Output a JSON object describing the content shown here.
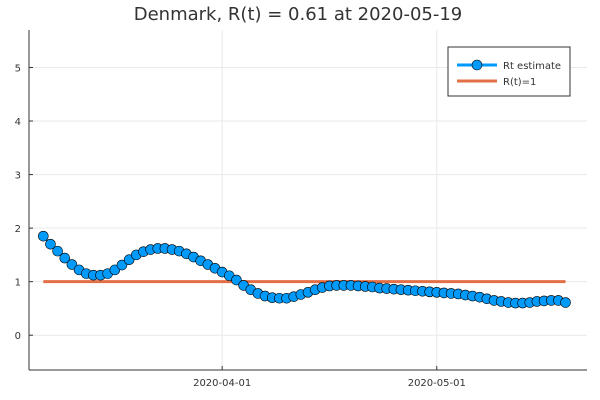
{
  "chart_data": {
    "type": "line",
    "title": "Denmark, R(t) = 0.61 at 2020-05-19",
    "xlabel": "",
    "ylabel": "",
    "xlim": [
      "2020-03-05",
      "2020-05-22"
    ],
    "ylim": [
      -0.65,
      5.7
    ],
    "x_ticks": [
      "2020-04-01",
      "2020-05-01"
    ],
    "y_ticks": [
      0,
      1,
      2,
      3,
      4,
      5
    ],
    "y_tick_labels": [
      "0",
      "1",
      "2",
      "3",
      "4",
      "5"
    ],
    "grid": true,
    "legend_position": "top-right",
    "series": [
      {
        "name": "Rt estimate",
        "color": "#009AFA",
        "marker": "circle",
        "x": [
          "2020-03-07",
          "2020-03-08",
          "2020-03-09",
          "2020-03-10",
          "2020-03-11",
          "2020-03-12",
          "2020-03-13",
          "2020-03-14",
          "2020-03-15",
          "2020-03-16",
          "2020-03-17",
          "2020-03-18",
          "2020-03-19",
          "2020-03-20",
          "2020-03-21",
          "2020-03-22",
          "2020-03-23",
          "2020-03-24",
          "2020-03-25",
          "2020-03-26",
          "2020-03-27",
          "2020-03-28",
          "2020-03-29",
          "2020-03-30",
          "2020-03-31",
          "2020-04-01",
          "2020-04-02",
          "2020-04-03",
          "2020-04-04",
          "2020-04-05",
          "2020-04-06",
          "2020-04-07",
          "2020-04-08",
          "2020-04-09",
          "2020-04-10",
          "2020-04-11",
          "2020-04-12",
          "2020-04-13",
          "2020-04-14",
          "2020-04-15",
          "2020-04-16",
          "2020-04-17",
          "2020-04-18",
          "2020-04-19",
          "2020-04-20",
          "2020-04-21",
          "2020-04-22",
          "2020-04-23",
          "2020-04-24",
          "2020-04-25",
          "2020-04-26",
          "2020-04-27",
          "2020-04-28",
          "2020-04-29",
          "2020-04-30",
          "2020-05-01",
          "2020-05-02",
          "2020-05-03",
          "2020-05-04",
          "2020-05-05",
          "2020-05-06",
          "2020-05-07",
          "2020-05-08",
          "2020-05-09",
          "2020-05-10",
          "2020-05-11",
          "2020-05-12",
          "2020-05-13",
          "2020-05-14",
          "2020-05-15",
          "2020-05-16",
          "2020-05-17",
          "2020-05-18",
          "2020-05-19"
        ],
        "values": [
          1.85,
          1.7,
          1.57,
          1.44,
          1.32,
          1.22,
          1.15,
          1.12,
          1.12,
          1.15,
          1.22,
          1.31,
          1.41,
          1.5,
          1.56,
          1.6,
          1.62,
          1.62,
          1.6,
          1.57,
          1.52,
          1.46,
          1.39,
          1.32,
          1.25,
          1.18,
          1.11,
          1.03,
          0.93,
          0.85,
          0.78,
          0.73,
          0.7,
          0.69,
          0.69,
          0.72,
          0.76,
          0.8,
          0.85,
          0.89,
          0.92,
          0.93,
          0.93,
          0.93,
          0.92,
          0.91,
          0.9,
          0.88,
          0.87,
          0.86,
          0.85,
          0.84,
          0.83,
          0.82,
          0.81,
          0.8,
          0.79,
          0.78,
          0.77,
          0.75,
          0.73,
          0.71,
          0.68,
          0.65,
          0.63,
          0.61,
          0.6,
          0.6,
          0.61,
          0.63,
          0.64,
          0.65,
          0.65,
          0.61
        ]
      },
      {
        "name": "R(t)=1",
        "color": "#E26F46",
        "x": [
          "2020-03-07",
          "2020-05-19"
        ],
        "values": [
          1,
          1
        ]
      }
    ]
  }
}
